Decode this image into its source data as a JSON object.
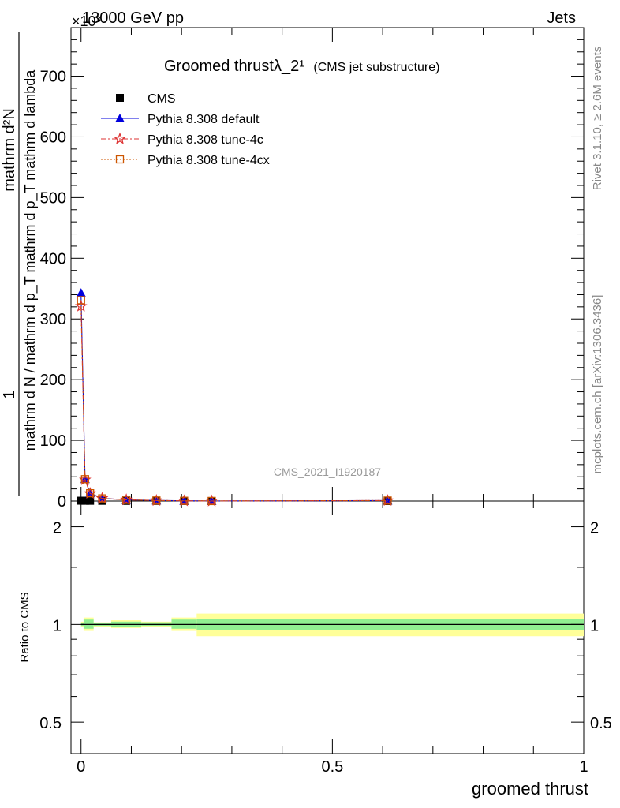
{
  "header": {
    "energy_label": "13000 GeV pp",
    "scale_label": "×10³",
    "process_label": "Jets"
  },
  "side_labels": {
    "rivet": "Rivet 3.1.10, ≥ 2.6M events",
    "mcplots": "mcplots.cern.ch [arXiv:1306.3436]"
  },
  "watermark": "CMS_2021_I1920187",
  "colors": {
    "cms": "#000000",
    "default": "#0000dd",
    "tune4c": "#dd3333",
    "tune4cx": "#cc5500",
    "band_inner": "#90ee90",
    "band_outer": "#ffff99"
  },
  "chart_data": [
    {
      "type": "line",
      "title": "Groomed thrustλ_2¹",
      "subtitle": "(CMS jet substructure)",
      "ylabel_main": "mathrm d N / mathrm d p_T mathrm d p_T mathrm d lambda",
      "ylabel_prefix": "1",
      "ylabel_numerator": "mathrm d²N",
      "ylim": [
        0,
        780
      ],
      "xlim": [
        -0.02,
        1.0
      ],
      "y_scale_factor": "10³",
      "yticks": [
        0,
        100,
        200,
        300,
        400,
        500,
        600,
        700
      ],
      "legend_position": "top-left",
      "x": [
        0.0,
        0.008,
        0.018,
        0.042,
        0.09,
        0.15,
        0.205,
        0.26,
        0.61
      ],
      "series": [
        {
          "name": "CMS",
          "marker": "square",
          "values": [
            0.6,
            0.5,
            0.45,
            0.4,
            0.3,
            0.2,
            0.1,
            0.05,
            0.02
          ]
        },
        {
          "name": "Pythia 8.308 default",
          "marker": "triangle",
          "values": [
            343,
            36,
            13,
            4.5,
            2,
            0.9,
            0.4,
            0.1,
            0.8
          ]
        },
        {
          "name": "Pythia 8.308 tune-4c",
          "marker": "star",
          "values": [
            321,
            35,
            12.5,
            4.3,
            1.9,
            0.85,
            0.4,
            0.1,
            0.8
          ]
        },
        {
          "name": "Pythia 8.308 tune-4cx",
          "marker": "open-square",
          "values": [
            331,
            36,
            12.8,
            4.4,
            2,
            0.9,
            0.4,
            0.1,
            0.8
          ]
        }
      ]
    },
    {
      "type": "area",
      "ylabel": "Ratio to CMS",
      "xlabel": "groomed thrust",
      "ylim": [
        0.4,
        2.4
      ],
      "log_scale": true,
      "xlim": [
        -0.02,
        1.0
      ],
      "yticks": [
        0.5,
        1,
        2
      ],
      "xticks": [
        0,
        0.5,
        1
      ],
      "reference": 1,
      "bands": [
        {
          "x0": 0.0,
          "x1": 0.005,
          "inner": [
            0.99,
            1.01
          ],
          "outer": [
            0.98,
            1.02
          ]
        },
        {
          "x0": 0.005,
          "x1": 0.025,
          "inner": [
            0.97,
            1.035
          ],
          "outer": [
            0.955,
            1.05
          ]
        },
        {
          "x0": 0.025,
          "x1": 0.06,
          "inner": [
            0.99,
            1.01
          ],
          "outer": [
            0.985,
            1.015
          ]
        },
        {
          "x0": 0.06,
          "x1": 0.12,
          "inner": [
            0.985,
            1.02
          ],
          "outer": [
            0.975,
            1.03
          ]
        },
        {
          "x0": 0.12,
          "x1": 0.18,
          "inner": [
            0.99,
            1.015
          ],
          "outer": [
            0.985,
            1.02
          ]
        },
        {
          "x0": 0.18,
          "x1": 0.23,
          "inner": [
            0.97,
            1.035
          ],
          "outer": [
            0.955,
            1.05
          ]
        },
        {
          "x0": 0.23,
          "x1": 1.0,
          "inner": [
            0.96,
            1.04
          ],
          "outer": [
            0.92,
            1.08
          ]
        }
      ]
    }
  ]
}
